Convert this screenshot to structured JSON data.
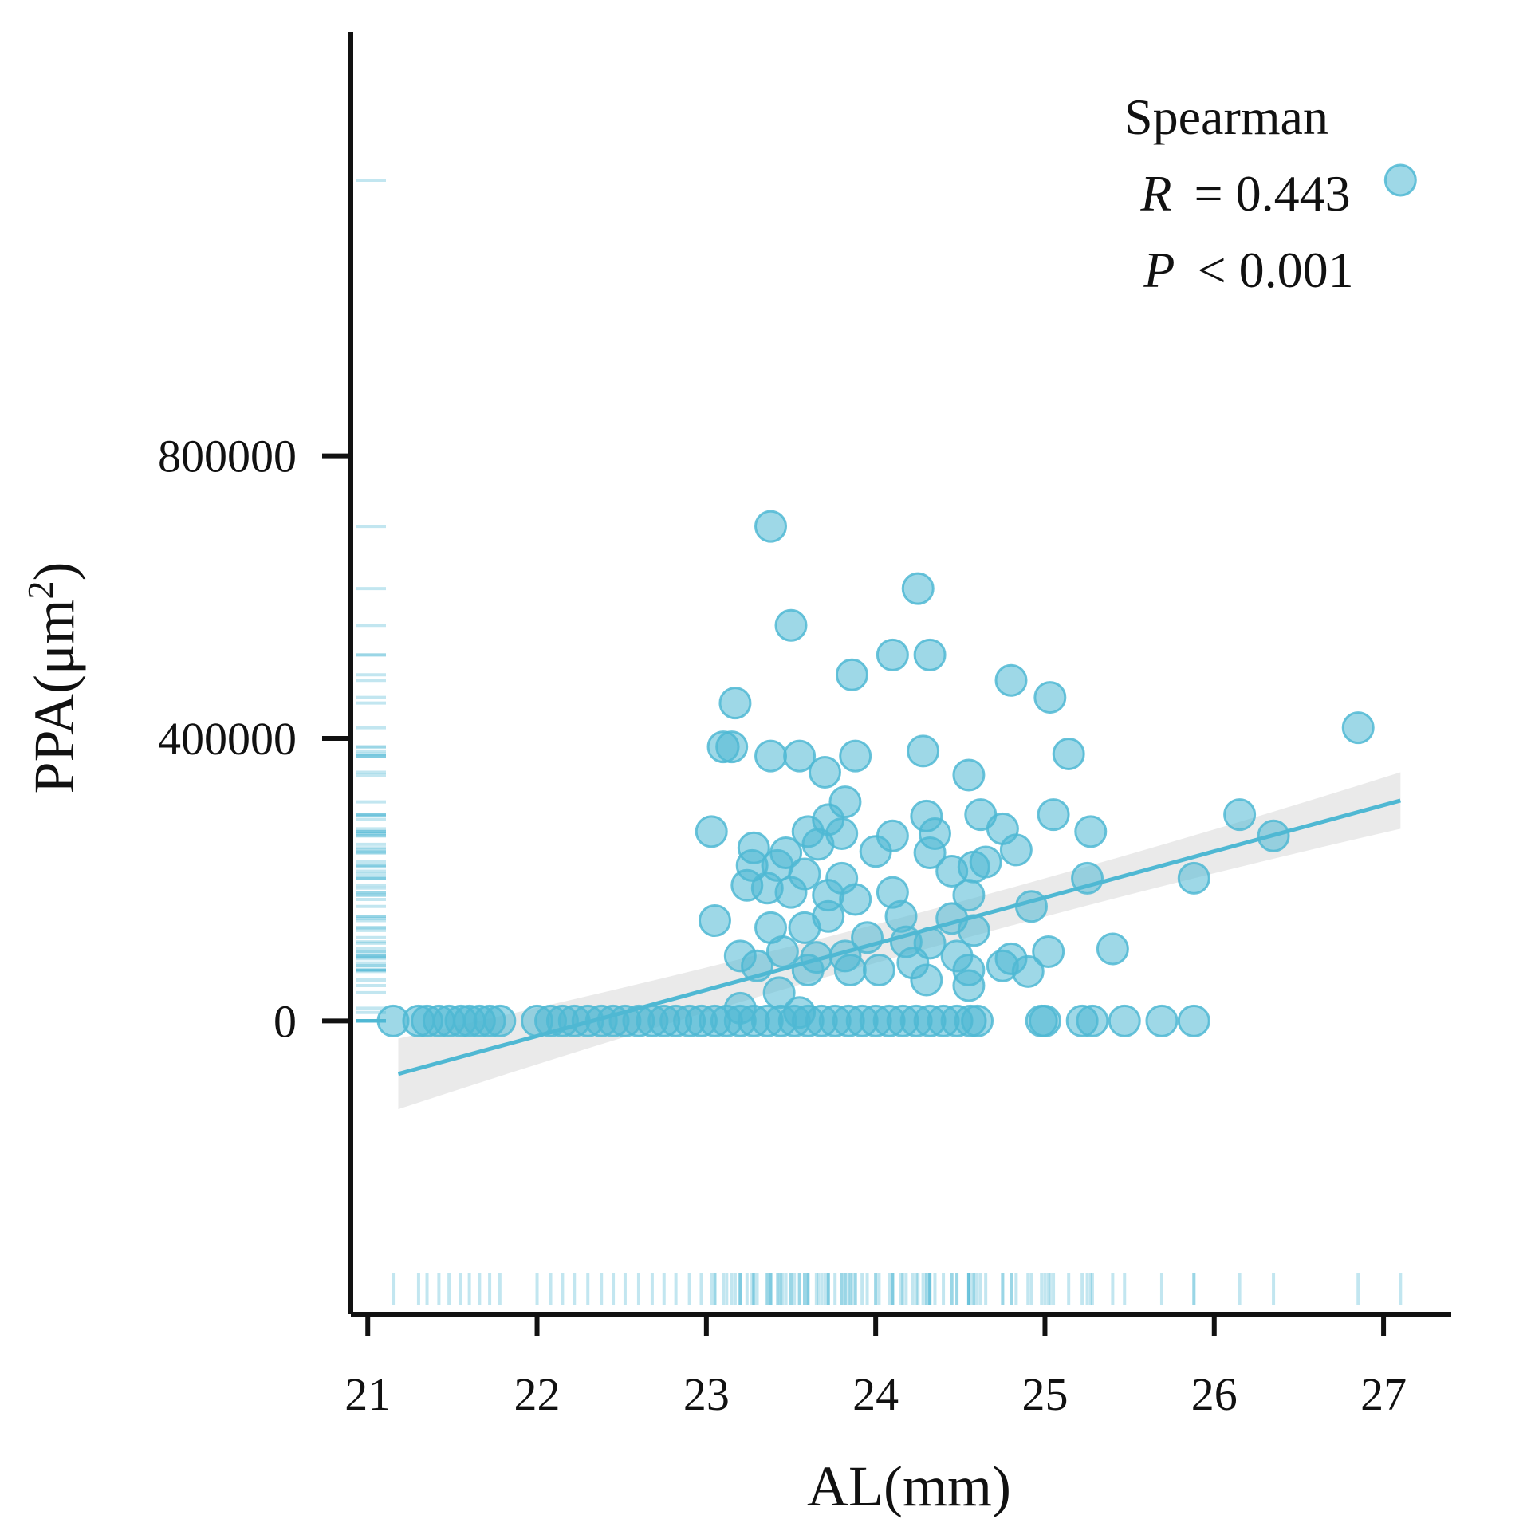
{
  "chart_data": {
    "type": "scatter",
    "x_label": "AL(mm)",
    "y_label_main": "PPA(μm",
    "y_label_sup": "2",
    "y_label_close": ")",
    "xlim": [
      20.9,
      27.4
    ],
    "ylim": [
      -415000,
      1400000
    ],
    "x_ticks": [
      "21",
      "22",
      "23",
      "24",
      "25",
      "26",
      "27"
    ],
    "y_ticks": [
      "0",
      "400000",
      "800000"
    ],
    "annotation": {
      "method": "Spearman",
      "r_label": "R",
      "r_text": "= 0.443",
      "p_label": "P",
      "p_text": "< 0.001"
    },
    "regression": {
      "x_start": 21.18,
      "x_end": 27.1,
      "y_start": -75000,
      "y_end": 312000,
      "ci_start": 50000,
      "ci_end": 40000
    },
    "colors": {
      "accent": "#4fb8d3",
      "band": "#d9d9d9",
      "axis": "#111111"
    },
    "rug": true,
    "points": [
      [
        21.15,
        0
      ],
      [
        21.3,
        0
      ],
      [
        21.35,
        0
      ],
      [
        21.42,
        0
      ],
      [
        21.48,
        0
      ],
      [
        21.55,
        0
      ],
      [
        21.6,
        0
      ],
      [
        21.66,
        0
      ],
      [
        21.72,
        0
      ],
      [
        21.78,
        0
      ],
      [
        22.0,
        0
      ],
      [
        22.08,
        0
      ],
      [
        22.15,
        0
      ],
      [
        22.22,
        0
      ],
      [
        22.3,
        0
      ],
      [
        22.38,
        0
      ],
      [
        22.45,
        0
      ],
      [
        22.52,
        0
      ],
      [
        22.6,
        0
      ],
      [
        22.68,
        0
      ],
      [
        22.75,
        0
      ],
      [
        22.82,
        0
      ],
      [
        22.9,
        0
      ],
      [
        22.97,
        0
      ],
      [
        23.05,
        0
      ],
      [
        23.12,
        0
      ],
      [
        23.2,
        0
      ],
      [
        23.28,
        0
      ],
      [
        23.36,
        0
      ],
      [
        23.44,
        0
      ],
      [
        23.52,
        0
      ],
      [
        23.6,
        0
      ],
      [
        23.68,
        0
      ],
      [
        23.76,
        0
      ],
      [
        23.84,
        0
      ],
      [
        23.92,
        0
      ],
      [
        24.0,
        0
      ],
      [
        24.08,
        0
      ],
      [
        24.16,
        0
      ],
      [
        24.24,
        0
      ],
      [
        24.32,
        0
      ],
      [
        24.4,
        0
      ],
      [
        24.48,
        0
      ],
      [
        24.56,
        0
      ],
      [
        24.6,
        0
      ],
      [
        24.98,
        0
      ],
      [
        25.0,
        0
      ],
      [
        25.22,
        0
      ],
      [
        25.28,
        0
      ],
      [
        25.47,
        0
      ],
      [
        25.69,
        0
      ],
      [
        25.88,
        0
      ],
      [
        23.38,
        700000
      ],
      [
        24.25,
        612000
      ],
      [
        23.5,
        560000
      ],
      [
        24.1,
        518000
      ],
      [
        24.32,
        518000
      ],
      [
        23.86,
        490000
      ],
      [
        24.8,
        482000
      ],
      [
        25.03,
        458000
      ],
      [
        23.17,
        450000
      ],
      [
        26.85,
        415000
      ],
      [
        23.1,
        388000
      ],
      [
        23.15,
        388000
      ],
      [
        23.38,
        375000
      ],
      [
        23.55,
        375000
      ],
      [
        23.7,
        352000
      ],
      [
        23.88,
        375000
      ],
      [
        24.28,
        382000
      ],
      [
        24.55,
        348000
      ],
      [
        25.14,
        378000
      ],
      [
        23.82,
        310000
      ],
      [
        23.72,
        285000
      ],
      [
        24.3,
        290000
      ],
      [
        24.62,
        292000
      ],
      [
        25.05,
        292000
      ],
      [
        26.15,
        292000
      ],
      [
        23.03,
        268000
      ],
      [
        23.6,
        268000
      ],
      [
        23.8,
        265000
      ],
      [
        24.1,
        262000
      ],
      [
        24.35,
        265000
      ],
      [
        24.75,
        272000
      ],
      [
        25.27,
        268000
      ],
      [
        26.35,
        262000
      ],
      [
        23.28,
        245000
      ],
      [
        23.47,
        238000
      ],
      [
        23.66,
        250000
      ],
      [
        24.0,
        240000
      ],
      [
        24.32,
        238000
      ],
      [
        24.65,
        225000
      ],
      [
        24.83,
        242000
      ],
      [
        23.27,
        220000
      ],
      [
        23.42,
        220000
      ],
      [
        23.58,
        208000
      ],
      [
        23.8,
        202000
      ],
      [
        24.45,
        212000
      ],
      [
        24.58,
        218000
      ],
      [
        25.25,
        202000
      ],
      [
        25.88,
        202000
      ],
      [
        23.24,
        192000
      ],
      [
        23.36,
        188000
      ],
      [
        23.5,
        182000
      ],
      [
        23.72,
        178000
      ],
      [
        23.88,
        172000
      ],
      [
        24.1,
        182000
      ],
      [
        24.55,
        178000
      ],
      [
        24.92,
        162000
      ],
      [
        23.05,
        142000
      ],
      [
        23.38,
        132000
      ],
      [
        23.58,
        132000
      ],
      [
        23.72,
        148000
      ],
      [
        24.15,
        148000
      ],
      [
        24.45,
        145000
      ],
      [
        24.58,
        128000
      ],
      [
        23.95,
        118000
      ],
      [
        24.32,
        110000
      ],
      [
        24.18,
        112000
      ],
      [
        25.4,
        102000
      ],
      [
        25.02,
        98000
      ],
      [
        23.2,
        92000
      ],
      [
        23.45,
        98000
      ],
      [
        23.65,
        90000
      ],
      [
        23.82,
        92000
      ],
      [
        24.48,
        92000
      ],
      [
        24.8,
        88000
      ],
      [
        23.3,
        78000
      ],
      [
        23.6,
        72000
      ],
      [
        23.85,
        72000
      ],
      [
        24.02,
        72000
      ],
      [
        24.22,
        82000
      ],
      [
        24.55,
        72000
      ],
      [
        24.75,
        78000
      ],
      [
        24.9,
        70000
      ],
      [
        24.3,
        58000
      ],
      [
        24.55,
        50000
      ],
      [
        23.43,
        40000
      ],
      [
        23.2,
        18000
      ],
      [
        23.55,
        12000
      ]
    ]
  }
}
